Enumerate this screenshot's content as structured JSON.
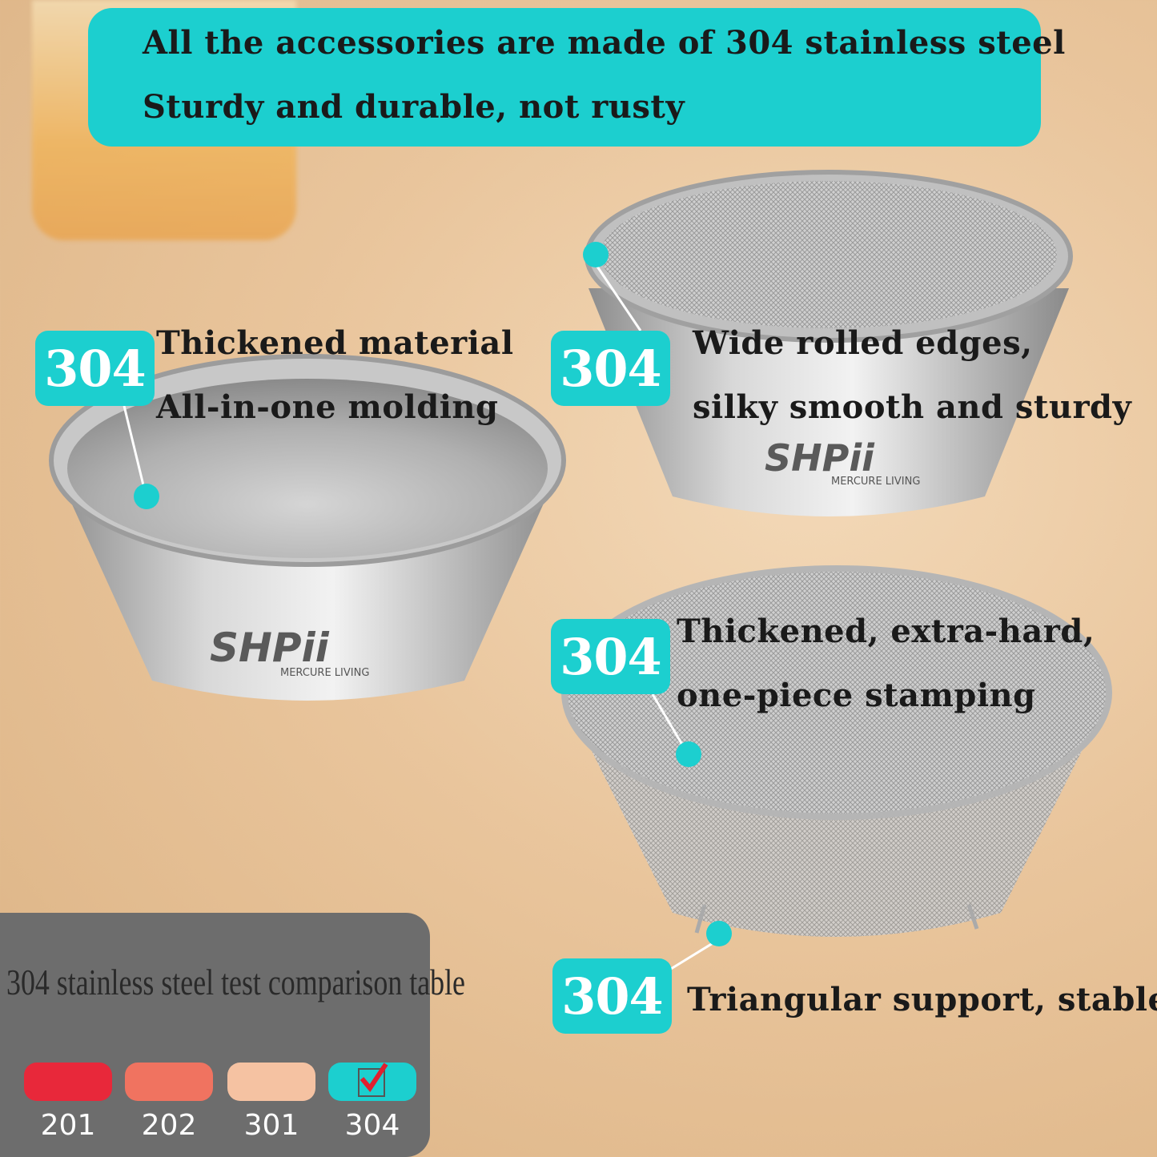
{
  "banner": {
    "line1": "All the accessories are made of 304 stainless steel",
    "line2": "Sturdy and durable, not rusty"
  },
  "callouts": [
    {
      "badge": "304",
      "line1": "Thickened material",
      "line2": "All-in-one molding"
    },
    {
      "badge": "304",
      "line1": "Wide rolled edges,",
      "line2": "silky smooth and sturdy"
    },
    {
      "badge": "304",
      "line1": "Thickened, extra-hard,",
      "line2": "one-piece stamping"
    },
    {
      "badge": "304",
      "line1": "Triangular support, stable"
    }
  ],
  "logo": {
    "brand": "SHPii",
    "tagline": "MERCURE LIVING"
  },
  "comparison": {
    "title": "304 stainless steel test comparison table",
    "grades": [
      {
        "label": "201",
        "color": "#e8283a",
        "checked": false
      },
      {
        "label": "202",
        "color": "#f07360",
        "checked": false
      },
      {
        "label": "301",
        "color": "#f5c2a2",
        "checked": false
      },
      {
        "label": "304",
        "color": "#1ccfcf",
        "checked": true
      }
    ]
  },
  "colors": {
    "accent": "#1ccfcf",
    "check": "#e02030"
  }
}
